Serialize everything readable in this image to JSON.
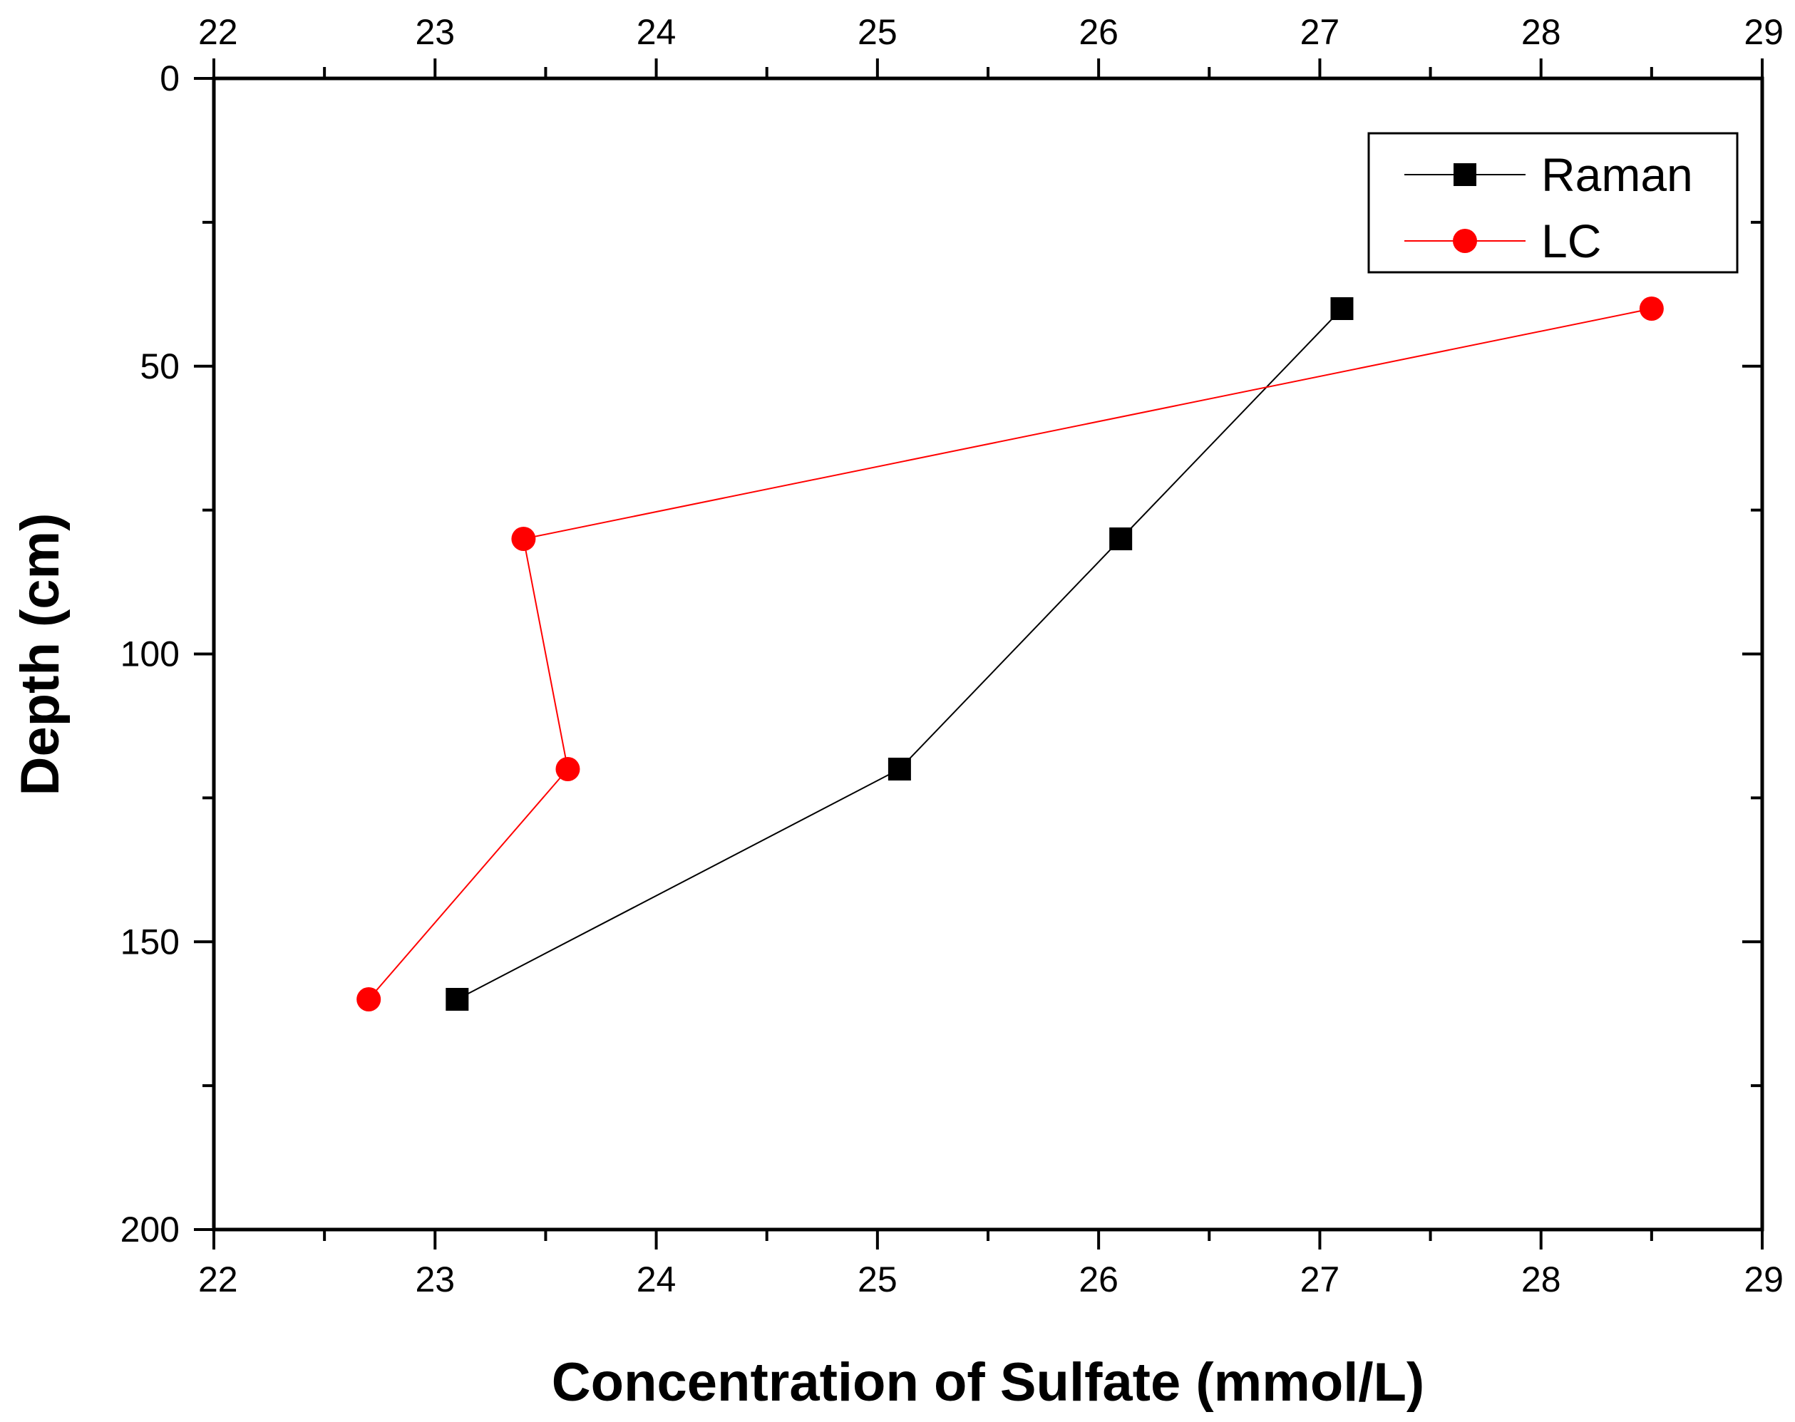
{
  "chart_data": {
    "type": "line",
    "xlabel": "Concentration of Sulfate (mmol/L)",
    "ylabel": "Depth (cm)",
    "xlim": [
      22,
      29
    ],
    "ylim": [
      0,
      200
    ],
    "y_inverted": true,
    "x_axis_mirrored_top": true,
    "x_ticks": [
      22,
      23,
      24,
      25,
      26,
      27,
      28,
      29
    ],
    "x_tick_labels": [
      "22",
      "23",
      "24",
      "25",
      "26",
      "27",
      "28",
      "29"
    ],
    "y_ticks": [
      0,
      50,
      100,
      150,
      200
    ],
    "y_tick_labels": [
      "0",
      "50",
      "100",
      "150",
      "200"
    ],
    "grid": false,
    "legend_position": "top-right",
    "series": [
      {
        "name": "Raman",
        "color": "#000000",
        "marker": "square",
        "points": [
          {
            "x": 27.1,
            "y": 40
          },
          {
            "x": 26.1,
            "y": 80
          },
          {
            "x": 25.1,
            "y": 120
          },
          {
            "x": 23.1,
            "y": 160
          }
        ]
      },
      {
        "name": "LC",
        "color": "#ff0000",
        "marker": "circle",
        "points": [
          {
            "x": 28.5,
            "y": 40
          },
          {
            "x": 23.4,
            "y": 80
          },
          {
            "x": 23.6,
            "y": 120
          },
          {
            "x": 22.7,
            "y": 160
          }
        ]
      }
    ]
  }
}
